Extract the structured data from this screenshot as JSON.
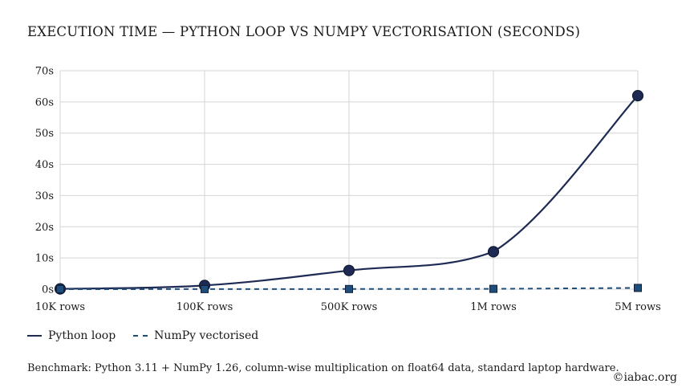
{
  "colors": {
    "python_line": "#1e2a54",
    "numpy_line": "#1f4e7a",
    "grid": "#d4d4d4"
  },
  "chart_data": {
    "type": "line",
    "title": "EXECUTION TIME — PYTHON LOOP VS NUMPY VECTORISATION (SECONDS)",
    "xlabel": "",
    "ylabel": "",
    "categories": [
      "10K rows",
      "100K rows",
      "500K rows",
      "1M rows",
      "5M rows"
    ],
    "ylim": [
      0,
      70
    ],
    "yticks": [
      0,
      10,
      20,
      30,
      40,
      50,
      60,
      70
    ],
    "ytick_labels": [
      "0s",
      "10s",
      "20s",
      "30s",
      "40s",
      "50s",
      "60s",
      "70s"
    ],
    "grid": true,
    "legend_position": "bottom-left",
    "series": [
      {
        "name": "Python loop",
        "values": [
          0.1,
          1.2,
          6,
          12,
          62
        ],
        "style": "solid",
        "marker": "circle"
      },
      {
        "name": "NumPy vectorised",
        "values": [
          0.01,
          0.02,
          0.05,
          0.1,
          0.4
        ],
        "style": "dashed",
        "marker": "square"
      }
    ]
  },
  "footnote": "Benchmark: Python 3.11 + NumPy 1.26, column-wise multiplication on float64 data, standard laptop hardware.",
  "source": "©iabac.org"
}
